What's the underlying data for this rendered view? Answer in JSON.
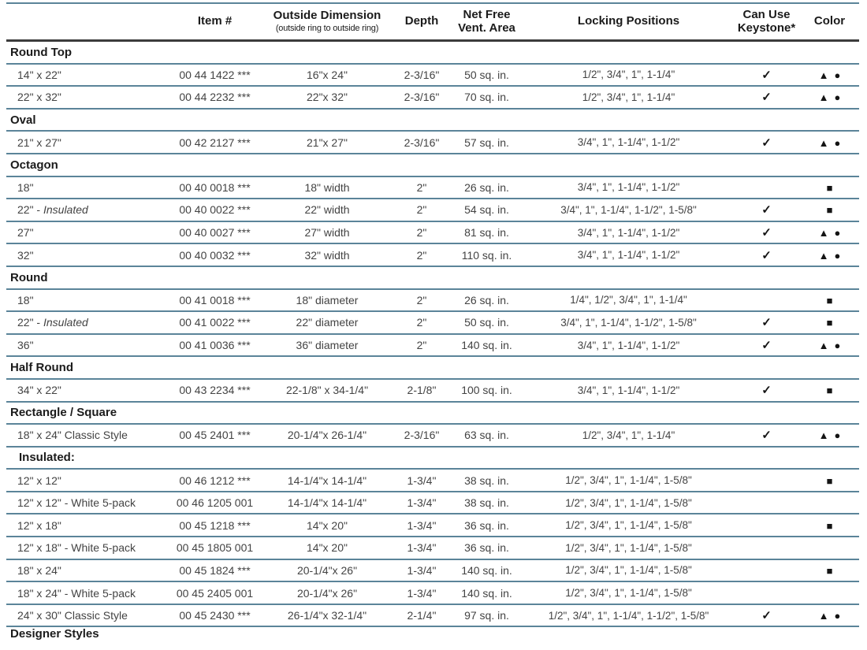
{
  "colors": {
    "rule_line": "#5b8499",
    "header_rule": "#3c3c3c",
    "text_dark": "#1b1b1b",
    "text_body": "#434343",
    "symbol": "#141414"
  },
  "legend": {
    "check": "✓",
    "triangle": "▲",
    "circle": "●",
    "square": "■"
  },
  "table": {
    "header": {
      "product": "",
      "item": "Item #",
      "dim": "Outside Dimension",
      "dim_sub": "(outside ring to outside ring)",
      "depth": "Depth",
      "area_line1": "Net Free",
      "area_line2": "Vent. Area",
      "locking": "Locking Positions",
      "keystone_line1": "Can Use",
      "keystone_line2": "Keystone*",
      "color": "Color"
    },
    "rows": [
      {
        "type": "section",
        "label": "Round Top"
      },
      {
        "type": "item",
        "name": "14\" x 22\"",
        "item": "00 44 1422 ***",
        "dim": "16\"x 24\"",
        "depth": "2-3/16\"",
        "area": "50 sq. in.",
        "locking": "1/2\", 3/4\", 1\", 1-1/4\"",
        "keystone": true,
        "colors": [
          "triangle",
          "circle"
        ]
      },
      {
        "type": "item",
        "name": "22\" x 32\"",
        "item": "00 44 2232 ***",
        "dim": "22\"x 32\"",
        "depth": "2-3/16\"",
        "area": "70 sq. in.",
        "locking": "1/2\", 3/4\", 1\", 1-1/4\"",
        "keystone": true,
        "colors": [
          "triangle",
          "circle"
        ]
      },
      {
        "type": "section",
        "label": "Oval"
      },
      {
        "type": "item",
        "name": "21\" x 27\"",
        "item": "00 42 2127 ***",
        "dim": "21\"x 27\"",
        "depth": "2-3/16\"",
        "area": "57 sq. in.",
        "locking": "3/4\", 1\", 1-1/4\", 1-1/2\"",
        "keystone": true,
        "colors": [
          "triangle",
          "circle"
        ]
      },
      {
        "type": "section",
        "label": "Octagon"
      },
      {
        "type": "item",
        "name": "18\"",
        "item": "00 40 0018 ***",
        "dim": "18\" width",
        "depth": "2\"",
        "area": "26 sq. in.",
        "locking": "3/4\", 1\", 1-1/4\", 1-1/2\"",
        "keystone": false,
        "colors": [
          "square"
        ]
      },
      {
        "type": "item",
        "name": "22\" - ",
        "name_italic": "Insulated",
        "item": "00 40 0022 ***",
        "dim": "22\" width",
        "depth": "2\"",
        "area": "54 sq. in.",
        "locking": "3/4\", 1\", 1-1/4\", 1-1/2\", 1-5/8\"",
        "keystone": true,
        "colors": [
          "square"
        ]
      },
      {
        "type": "item",
        "name": "27\"",
        "item": "00 40 0027 ***",
        "dim": "27\" width",
        "depth": "2\"",
        "area": "81 sq. in.",
        "locking": "3/4\", 1\", 1-1/4\", 1-1/2\"",
        "keystone": true,
        "colors": [
          "triangle",
          "circle"
        ]
      },
      {
        "type": "item",
        "name": "32\"",
        "item": "00 40 0032 ***",
        "dim": "32\" width",
        "depth": "2\"",
        "area": "110 sq. in.",
        "locking": "3/4\", 1\", 1-1/4\", 1-1/2\"",
        "keystone": true,
        "colors": [
          "triangle",
          "circle"
        ]
      },
      {
        "type": "section",
        "label": "Round"
      },
      {
        "type": "item",
        "name": "18\"",
        "item": "00 41 0018 ***",
        "dim": "18\" diameter",
        "depth": "2\"",
        "area": "26 sq. in.",
        "locking": "1/4\", 1/2\", 3/4\", 1\", 1-1/4\"",
        "keystone": false,
        "colors": [
          "square"
        ]
      },
      {
        "type": "item",
        "name": "22\" - ",
        "name_italic": "Insulated",
        "item": "00 41 0022 ***",
        "dim": "22\" diameter",
        "depth": "2\"",
        "area": "50 sq. in.",
        "locking": "3/4\", 1\", 1-1/4\", 1-1/2\", 1-5/8\"",
        "keystone": true,
        "colors": [
          "square"
        ]
      },
      {
        "type": "item",
        "name": "36\"",
        "item": "00 41 0036 ***",
        "dim": "36\" diameter",
        "depth": "2\"",
        "area": "140 sq. in.",
        "locking": "3/4\", 1\", 1-1/4\", 1-1/2\"",
        "keystone": true,
        "colors": [
          "triangle",
          "circle"
        ]
      },
      {
        "type": "section",
        "label": "Half Round"
      },
      {
        "type": "item",
        "name": "34\" x 22\"",
        "item": "00 43 2234 ***",
        "dim": "22-1/8\" x 34-1/4\"",
        "depth": "2-1/8\"",
        "area": "100 sq. in.",
        "locking": "3/4\", 1\", 1-1/4\", 1-1/2\"",
        "keystone": true,
        "colors": [
          "square"
        ]
      },
      {
        "type": "section",
        "label": "Rectangle / Square"
      },
      {
        "type": "item",
        "name": "18\" x 24\" Classic Style",
        "item": "00 45 2401 ***",
        "dim": "20-1/4\"x 26-1/4\"",
        "depth": "2-3/16\"",
        "area": "63 sq. in.",
        "locking": "1/2\", 3/4\", 1\", 1-1/4\"",
        "keystone": true,
        "colors": [
          "triangle",
          "circle"
        ]
      },
      {
        "type": "subsection",
        "label": "Insulated:"
      },
      {
        "type": "item",
        "name": "12\" x 12\"",
        "item": "00 46 1212 ***",
        "dim": "14-1/4\"x 14-1/4\"",
        "depth": "1-3/4\"",
        "area": "38 sq. in.",
        "locking": "1/2\", 3/4\", 1\", 1-1/4\", 1-5/8\"",
        "keystone": false,
        "colors": [
          "square"
        ]
      },
      {
        "type": "item",
        "name": "12\" x 12\" - White 5-pack",
        "item": "00 46 1205 001",
        "dim": "14-1/4\"x 14-1/4\"",
        "depth": "1-3/4\"",
        "area": "38 sq. in.",
        "locking": "1/2\", 3/4\", 1\", 1-1/4\", 1-5/8\"",
        "keystone": false,
        "colors": []
      },
      {
        "type": "item",
        "name": "12\" x 18\"",
        "item": "00 45 1218 ***",
        "dim": "14\"x 20\"",
        "depth": "1-3/4\"",
        "area": "36 sq. in.",
        "locking": "1/2\", 3/4\", 1\", 1-1/4\", 1-5/8\"",
        "keystone": false,
        "colors": [
          "square"
        ]
      },
      {
        "type": "item",
        "name": "12\" x 18\" - White 5-pack",
        "item": "00 45 1805 001",
        "dim": "14\"x 20\"",
        "depth": "1-3/4\"",
        "area": "36 sq. in.",
        "locking": "1/2\", 3/4\", 1\", 1-1/4\", 1-5/8\"",
        "keystone": false,
        "colors": []
      },
      {
        "type": "item",
        "name": "18\" x 24\"",
        "item": "00 45 1824 ***",
        "dim": "20-1/4\"x 26\"",
        "depth": "1-3/4\"",
        "area": "140 sq. in.",
        "locking": "1/2\", 3/4\", 1\", 1-1/4\", 1-5/8\"",
        "keystone": false,
        "colors": [
          "square"
        ]
      },
      {
        "type": "item",
        "name": "18\" x 24\" - White 5-pack",
        "item": "00 45 2405 001",
        "dim": "20-1/4\"x 26\"",
        "depth": "1-3/4\"",
        "area": "140 sq. in.",
        "locking": "1/2\", 3/4\", 1\", 1-1/4\", 1-5/8\"",
        "keystone": false,
        "colors": []
      },
      {
        "type": "item",
        "name": "24\" x 30\" Classic Style",
        "item": "00 45 2430 ***",
        "dim": "26-1/4\"x 32-1/4\"",
        "depth": "2-1/4\"",
        "area": "97 sq. in.",
        "locking": "1/2\", 3/4\", 1\", 1-1/4\", 1-1/2\", 1-5/8\"",
        "keystone": true,
        "colors": [
          "triangle",
          "circle"
        ]
      },
      {
        "type": "section",
        "label": "Designer Styles",
        "partial": true
      }
    ]
  }
}
